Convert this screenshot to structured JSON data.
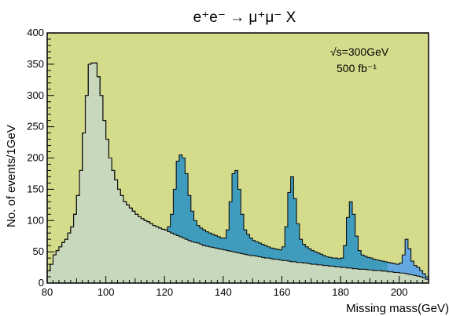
{
  "chart_data": {
    "type": "area",
    "title": "e⁺e⁻ → μ⁺μ⁻ X",
    "xlabel": "Missing mass(GeV)",
    "ylabel": "No. of events/1GeV",
    "xlim": [
      80,
      210
    ],
    "ylim": [
      0,
      400
    ],
    "x_ticks": [
      "80",
      "100",
      "120",
      "140",
      "160",
      "180",
      "200"
    ],
    "y_ticks": [
      "0",
      "50",
      "100",
      "150",
      "200",
      "250",
      "300",
      "350",
      "400"
    ],
    "annotations": [
      "√s=300GeV",
      "500 fb⁻¹"
    ],
    "grid": false,
    "bin_width": 1,
    "colors": {
      "plot_background": "#d4dc8c",
      "background_fill": "#c8d8bc",
      "signal_fill": "#3f9cbd",
      "last_peak_fill": "#63a8e0",
      "outline": "#101010"
    },
    "series": [
      {
        "values": [
          20,
          30,
          45,
          52,
          58,
          65,
          70,
          80,
          90,
          110,
          140,
          180,
          240,
          300,
          350,
          352,
          352,
          330,
          300,
          260,
          230,
          200,
          180,
          165,
          150,
          140,
          130,
          125,
          120,
          115,
          110,
          106,
          103,
          100,
          98,
          95,
          92,
          90,
          88,
          86,
          85,
          90,
          110,
          150,
          195,
          205,
          200,
          175,
          140,
          115,
          100,
          92,
          88,
          85,
          82,
          80,
          78,
          76,
          74,
          72,
          72,
          85,
          130,
          175,
          180,
          150,
          110,
          85,
          78,
          72,
          68,
          66,
          64,
          62,
          60,
          58,
          56,
          55,
          54,
          53,
          58,
          90,
          145,
          170,
          135,
          95,
          70,
          62,
          58,
          55,
          52,
          50,
          48,
          46,
          44,
          42,
          41,
          40,
          40,
          39,
          40,
          60,
          105,
          130,
          110,
          75,
          52,
          45,
          43,
          41,
          40,
          38,
          37,
          36,
          35,
          34,
          33,
          32,
          31,
          30,
          32,
          45,
          70,
          55,
          35,
          28,
          25,
          20,
          15,
          10
        ]
      },
      {
        "values": [
          20,
          30,
          45,
          52,
          58,
          65,
          70,
          80,
          90,
          110,
          140,
          180,
          240,
          300,
          350,
          352,
          352,
          330,
          300,
          260,
          230,
          200,
          180,
          165,
          150,
          140,
          130,
          125,
          120,
          115,
          110,
          106,
          103,
          100,
          98,
          95,
          92,
          90,
          88,
          86,
          85,
          82,
          80,
          78,
          76,
          74,
          72,
          70,
          68,
          66,
          65,
          64,
          62,
          60,
          59,
          58,
          57,
          56,
          55,
          54,
          53,
          52,
          51,
          50,
          49,
          48,
          47,
          46,
          45,
          44,
          44,
          43,
          42,
          41,
          40,
          40,
          39,
          38,
          38,
          37,
          36,
          36,
          35,
          34,
          34,
          33,
          33,
          32,
          32,
          31,
          30,
          30,
          29,
          29,
          28,
          28,
          27,
          27,
          26,
          26,
          25,
          25,
          24,
          24,
          23,
          23,
          22,
          22,
          22,
          21,
          21,
          20,
          20,
          20,
          19,
          19,
          18,
          18,
          17,
          17,
          16,
          16,
          15,
          14,
          13,
          12,
          11,
          10,
          8,
          6
        ]
      }
    ]
  }
}
